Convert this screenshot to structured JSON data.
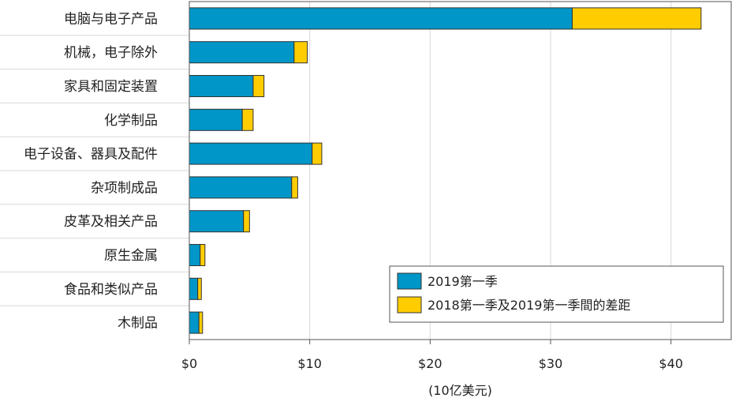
{
  "chart_data": {
    "type": "bar",
    "orientation": "horizontal",
    "stacked": true,
    "categories": [
      "电脑与电子产品",
      "机械，电子除外",
      "家具和固定装置",
      "化学制品",
      "电子设备、器具及配件",
      "杂项制成品",
      "皮革及相关产品",
      "原生金属",
      "食品和类似产品",
      "木制品"
    ],
    "series": [
      {
        "name": "2019第一季",
        "color": "#0096c8",
        "values": [
          31.8,
          8.7,
          5.3,
          4.4,
          10.2,
          8.5,
          4.5,
          0.9,
          0.7,
          0.8
        ]
      },
      {
        "name": "2018第一季及2019第一季間的差距",
        "color": "#ffcc00",
        "values": [
          10.7,
          1.1,
          0.9,
          0.9,
          0.8,
          0.5,
          0.5,
          0.4,
          0.3,
          0.3
        ]
      }
    ],
    "xlabel": "(10亿美元)",
    "xlim": [
      0,
      45
    ],
    "xticks": [
      0,
      10,
      20,
      30,
      40
    ],
    "xtick_labels": [
      "$0",
      "$10",
      "$20",
      "$30",
      "$40"
    ],
    "grid": "vertical",
    "legend_position": "bottom-right"
  }
}
